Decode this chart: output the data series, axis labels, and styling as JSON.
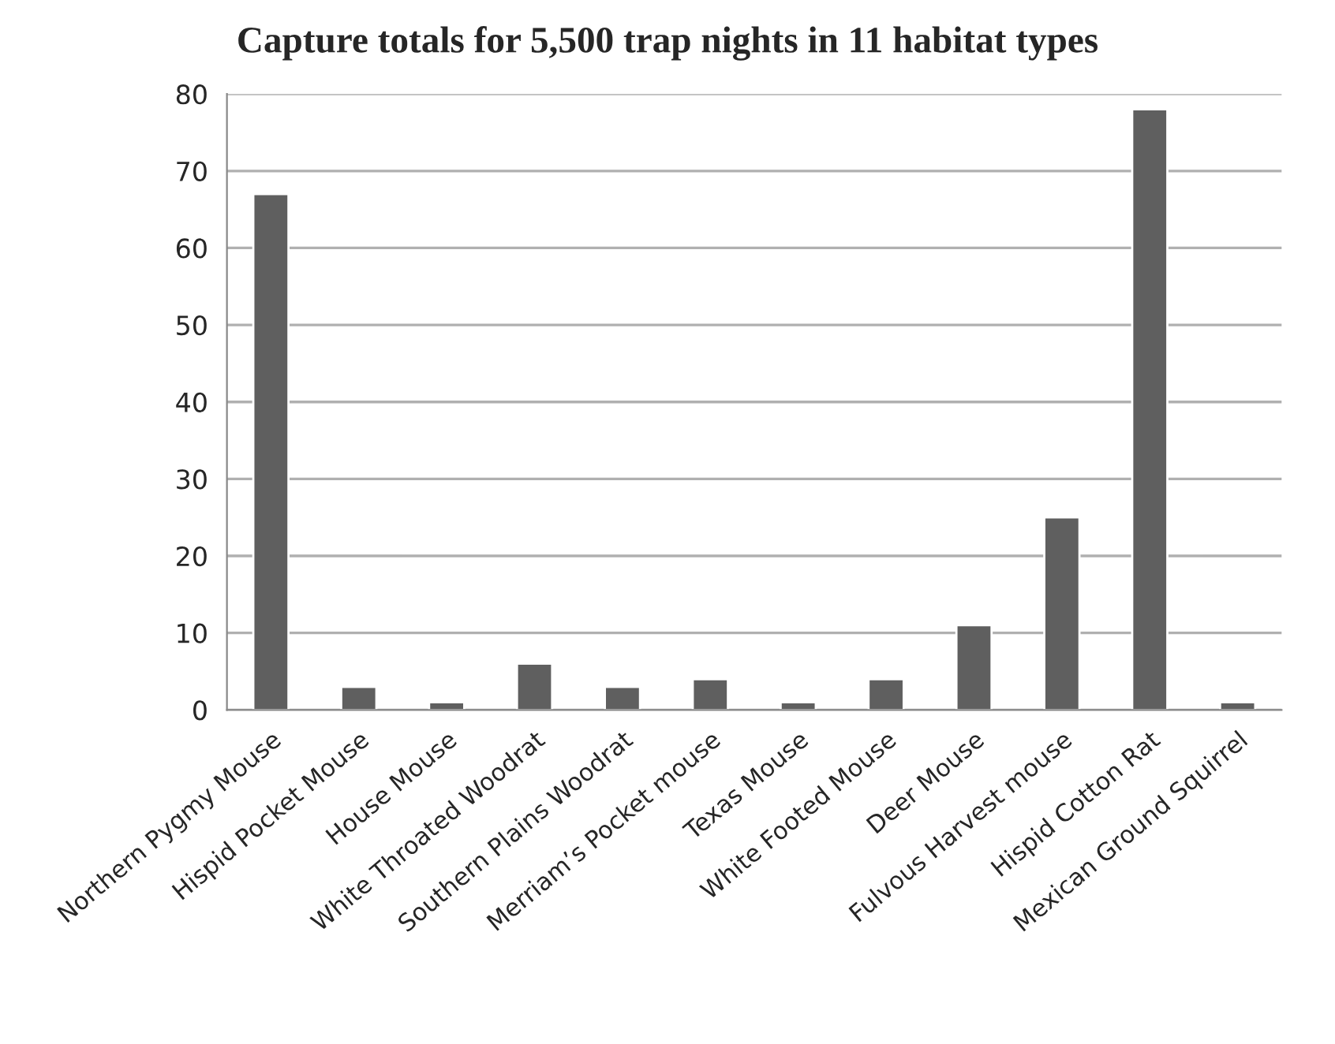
{
  "chart_data": {
    "type": "bar",
    "title": "Capture totals for 5,500 trap nights in 11 habitat types",
    "categories": [
      "Northern Pygmy Mouse",
      "Hispid Pocket Mouse",
      "House Mouse",
      "White Throated Woodrat",
      "Southern Plains Woodrat",
      "Merriam’s Pocket mouse",
      "Texas Mouse",
      "White Footed Mouse",
      "Deer Mouse",
      "Fulvous Harvest mouse",
      "Hispid Cotton Rat",
      "Mexican Ground Squirrel"
    ],
    "values": [
      67,
      3,
      1,
      6,
      3,
      4,
      1,
      4,
      11,
      25,
      78,
      1
    ],
    "color": "#5f5f5f",
    "ylim": [
      0,
      80
    ],
    "yticks": [
      0,
      10,
      20,
      30,
      40,
      50,
      60,
      70,
      80
    ],
    "grid": "y",
    "legend": false
  }
}
